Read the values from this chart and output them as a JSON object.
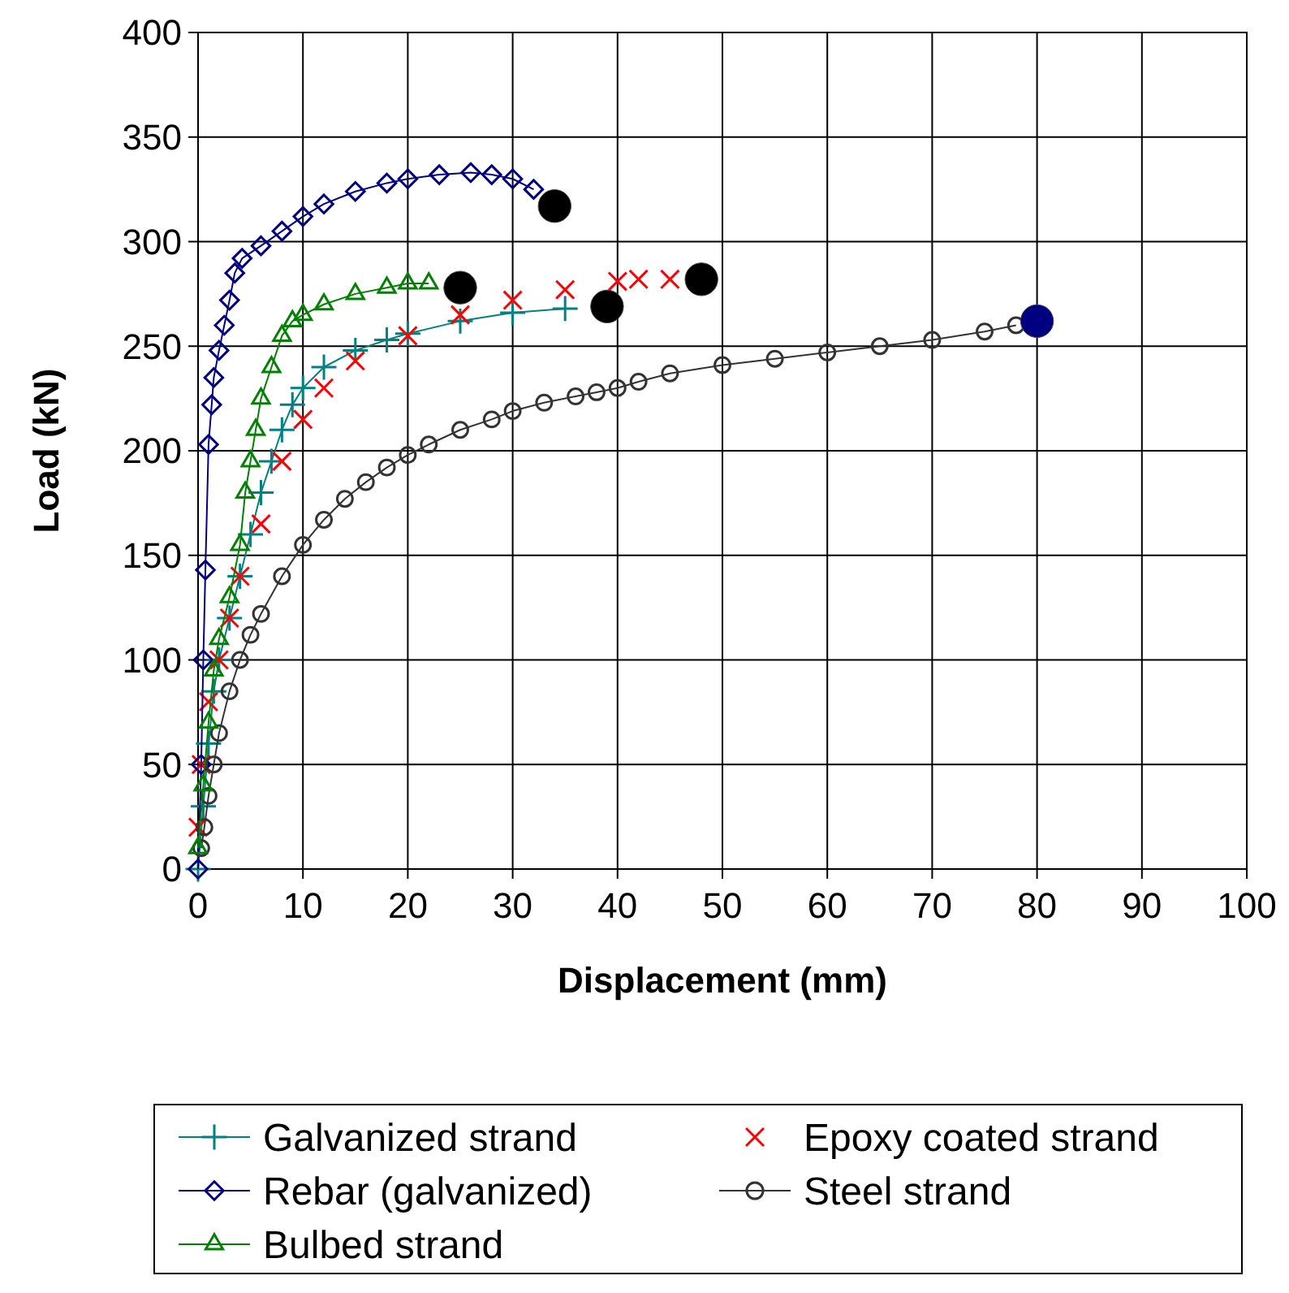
{
  "chart_data": {
    "type": "line",
    "xlabel": "Displacement (mm)",
    "ylabel": "Load (kN)",
    "xlim": [
      0,
      100
    ],
    "ylim": [
      0,
      400
    ],
    "xticks": [
      0,
      10,
      20,
      30,
      40,
      50,
      60,
      70,
      80,
      90,
      100
    ],
    "yticks": [
      0,
      50,
      100,
      150,
      200,
      250,
      300,
      350,
      400
    ],
    "grid": true,
    "legend": "bottom",
    "series": [
      {
        "name": "Galvanized strand",
        "color": "#008080",
        "marker": "plus",
        "line_style": "solid",
        "x": [
          0,
          0.5,
          1,
          1.5,
          2,
          3,
          4,
          5,
          6,
          7,
          8,
          9,
          10,
          12,
          15,
          18,
          20,
          25,
          30,
          35
        ],
        "values": [
          0,
          30,
          60,
          85,
          100,
          120,
          140,
          160,
          180,
          195,
          210,
          222,
          230,
          240,
          248,
          253,
          256,
          262,
          266,
          268
        ]
      },
      {
        "type": "scatter",
        "name": "Epoxy coated strand",
        "color": "#ff0000",
        "marker": "x",
        "x": [
          0,
          0.3,
          1,
          2,
          3,
          4,
          6,
          8,
          10,
          12,
          15,
          20,
          25,
          30,
          35,
          40,
          42,
          45
        ],
        "values": [
          20,
          50,
          80,
          100,
          120,
          140,
          165,
          195,
          215,
          230,
          243,
          255,
          265,
          272,
          277,
          281,
          282,
          282
        ]
      },
      {
        "name": "Rebar (galvanized)",
        "color": "#000080",
        "marker": "diamond",
        "line_style": "solid",
        "x": [
          0,
          0.3,
          0.5,
          0.7,
          1,
          1.3,
          1.5,
          2,
          2.5,
          3,
          3.5,
          4.2,
          6,
          8,
          10,
          12,
          15,
          18,
          20,
          23,
          26,
          28,
          30,
          32
        ],
        "values": [
          0,
          50,
          100,
          143,
          203,
          222,
          235,
          248,
          260,
          272,
          285,
          292,
          298,
          305,
          312,
          318,
          324,
          328,
          330,
          332,
          333,
          332,
          330,
          325
        ]
      },
      {
        "name": "Steel strand",
        "color": "#333333",
        "marker": "circle",
        "line_style": "solid",
        "x": [
          0.3,
          0.6,
          1,
          1.5,
          2,
          3,
          4,
          5,
          6,
          8,
          10,
          12,
          14,
          16,
          18,
          20,
          22,
          25,
          28,
          30,
          33,
          36,
          38,
          40,
          42,
          45,
          50,
          55,
          60,
          65,
          70,
          75,
          78
        ],
        "values": [
          10,
          20,
          35,
          50,
          65,
          85,
          100,
          112,
          122,
          140,
          155,
          167,
          177,
          185,
          192,
          198,
          203,
          210,
          215,
          219,
          223,
          226,
          228,
          230,
          233,
          237,
          241,
          244,
          247,
          250,
          253,
          257,
          260
        ]
      },
      {
        "name": "Bulbed strand",
        "color": "#008000",
        "marker": "triangle",
        "line_style": "solid",
        "x": [
          0,
          0.5,
          1,
          1.5,
          2,
          3,
          4,
          4.5,
          5,
          5.5,
          6,
          7,
          8,
          9,
          10,
          12,
          15,
          18,
          20,
          22
        ],
        "values": [
          10,
          40,
          70,
          95,
          110,
          130,
          155,
          180,
          195,
          210,
          225,
          240,
          255,
          262,
          265,
          270,
          275,
          278,
          280,
          280
        ]
      },
      {
        "type": "scatter",
        "marker": "circle",
        "x": [
          34,
          25,
          39,
          48,
          80
        ],
        "values": [
          317,
          278,
          269,
          282,
          262
        ],
        "colors": [
          "#000000",
          "#000000",
          "#000000",
          "#000000",
          "#000080"
        ]
      }
    ]
  }
}
